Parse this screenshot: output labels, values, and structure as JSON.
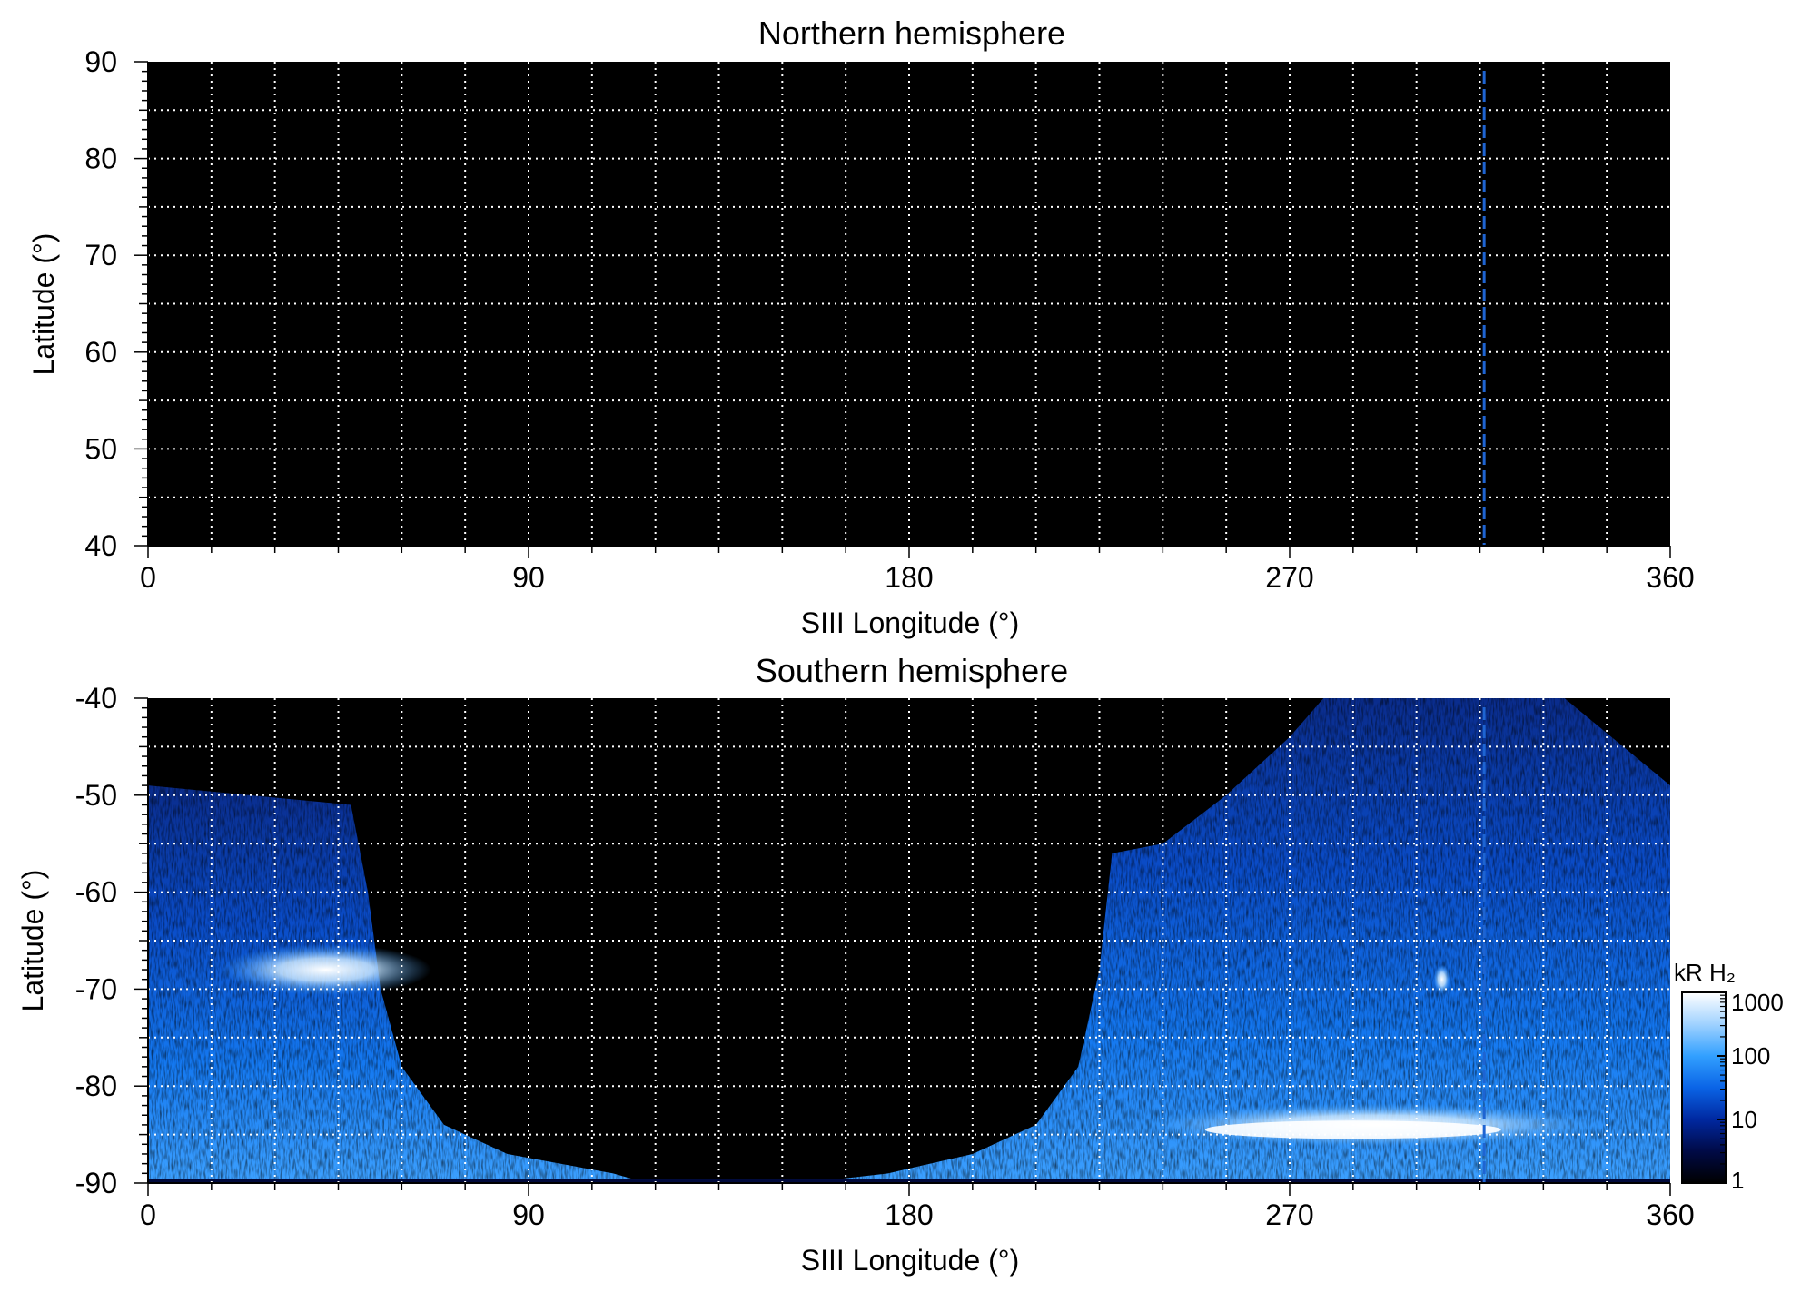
{
  "chart_data": [
    {
      "type": "heatmap",
      "title": "Northern hemisphere",
      "xlabel": "SIII Longitude (°)",
      "ylabel": "Latitude (°)",
      "xlim": [
        0,
        360
      ],
      "ylim": [
        40,
        90
      ],
      "xticks": [
        "0",
        "90",
        "180",
        "270",
        "360"
      ],
      "yticks": [
        "40",
        "50",
        "60",
        "70",
        "80",
        "90"
      ],
      "grid": true,
      "grid_x_step": 15,
      "grid_y_step": 5,
      "background": "#000000",
      "marker_longitude": 316,
      "marker_color": "#1e64d2",
      "emission": "none"
    },
    {
      "type": "heatmap",
      "title": "Southern hemisphere",
      "xlabel": "SIII Longitude (°)",
      "ylabel": "Latitude (°)",
      "xlim": [
        0,
        360
      ],
      "ylim": [
        -90,
        -40
      ],
      "xticks": [
        "0",
        "90",
        "180",
        "270",
        "360"
      ],
      "yticks": [
        "-40",
        "-50",
        "-60",
        "-70",
        "-80",
        "-90"
      ],
      "grid": true,
      "grid_x_step": 15,
      "grid_y_step": 5,
      "background": "#000000",
      "marker_longitude": 316,
      "marker_color": "#1e64d2",
      "emission_regions": [
        {
          "name": "west-lobe",
          "outline": [
            [
              0,
              -49
            ],
            [
              48,
              -51
            ],
            [
              52,
              -60
            ],
            [
              55,
              -70
            ],
            [
              60,
              -78
            ],
            [
              70,
              -84
            ],
            [
              85,
              -87
            ],
            [
              110,
              -89
            ],
            [
              118,
              -90
            ],
            [
              0,
              -90
            ]
          ]
        },
        {
          "name": "east-lobe",
          "outline": [
            [
              155,
              -90
            ],
            [
              175,
              -89
            ],
            [
              195,
              -87
            ],
            [
              210,
              -84
            ],
            [
              220,
              -78
            ],
            [
              225,
              -68
            ],
            [
              228,
              -56
            ],
            [
              240,
              -55
            ],
            [
              255,
              -50
            ],
            [
              270,
              -44
            ],
            [
              278,
              -40
            ],
            [
              335,
              -40
            ],
            [
              360,
              -49
            ],
            [
              360,
              -90
            ]
          ]
        }
      ],
      "bright_features": [
        {
          "name": "arc",
          "lon": 290,
          "lat": -84,
          "intensity": 1000
        },
        {
          "name": "west-oval",
          "lon": 42,
          "lat": -68,
          "intensity": 600
        },
        {
          "name": "spot",
          "lon": 306,
          "lat": -69,
          "intensity": 1000
        }
      ]
    }
  ],
  "colorbar": {
    "label": "kR H₂",
    "ticks": [
      "1000",
      "100",
      "10",
      "1"
    ],
    "scale": "log",
    "range": [
      1,
      1000
    ],
    "colors": [
      "#000000",
      "#000a46",
      "#0028a0",
      "#0a64e6",
      "#32a0ff",
      "#a0d2ff",
      "#ffffff"
    ]
  }
}
